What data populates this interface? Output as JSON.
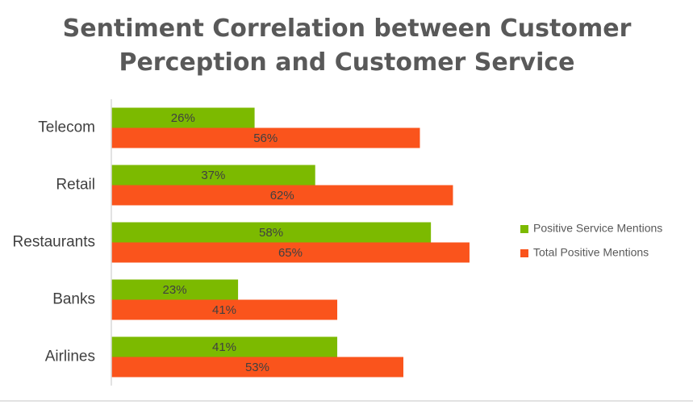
{
  "chart_data": {
    "type": "bar",
    "orientation": "horizontal",
    "title_lines": [
      "Sentiment Correlation between Customer",
      "Perception and Customer Service"
    ],
    "categories": [
      "Telecom",
      "Retail",
      "Restaurants",
      "Banks",
      "Airlines"
    ],
    "series": [
      {
        "name": "Positive Service Mentions",
        "values": [
          26,
          37,
          58,
          23,
          41
        ],
        "labels": [
          "26%",
          "37%",
          "58%",
          "23%",
          "41%"
        ],
        "color": "#7cba00"
      },
      {
        "name": "Total Positive Mentions",
        "values": [
          56,
          62,
          65,
          41,
          53
        ],
        "labels": [
          "56%",
          "62%",
          "65%",
          "41%",
          "53%"
        ],
        "color": "#fa541c"
      }
    ],
    "xlim": [
      0,
      100
    ],
    "legend_position": "right",
    "grid": false,
    "axis_color": "#d9d9d9",
    "label_color": "#404040"
  }
}
